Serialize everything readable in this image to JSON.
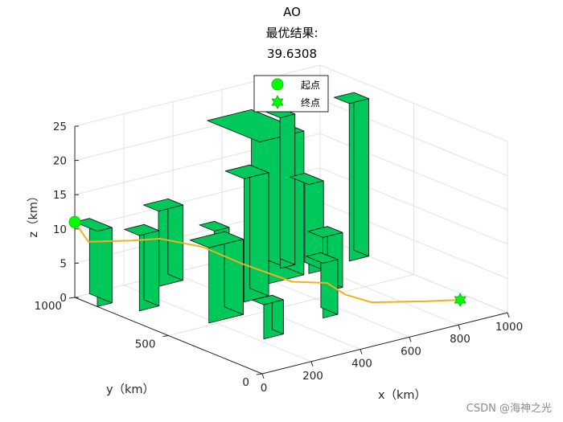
{
  "chart_data": {
    "type": "3d-bar-obstacles",
    "title_lines": [
      "AO",
      "最优结果:",
      "39.6308"
    ],
    "xlabel": "x（km）",
    "ylabel": "y（km）",
    "zlabel": "z（km）",
    "xlim": [
      0,
      1000
    ],
    "ylim": [
      0,
      1000
    ],
    "zlim": [
      0,
      25
    ],
    "xticks": [
      "0",
      "200",
      "400",
      "600",
      "800",
      "1000"
    ],
    "yticks": [
      "0",
      "500",
      "1000"
    ],
    "zticks": [
      "0",
      "5",
      "10",
      "15",
      "20",
      "25"
    ],
    "grid": true,
    "legend": {
      "location": "top-center",
      "entries": [
        {
          "label": "起点",
          "marker": "circle",
          "color": "#00FF00"
        },
        {
          "label": "终点",
          "marker": "hexagram",
          "color": "#00FF00"
        }
      ]
    },
    "colors": {
      "obstacle": "#00C85A",
      "path": "#EDB120",
      "marker": "#00FF00"
    },
    "obstacles": [
      {
        "x": [
          0,
          60
        ],
        "y": [
          880,
          1000
        ],
        "h": 11
      },
      {
        "x": [
          80,
          160
        ],
        "y": [
          760,
          840
        ],
        "h": 11
      },
      {
        "x": [
          180,
          320
        ],
        "y": [
          520,
          620
        ],
        "h": 11
      },
      {
        "x": [
          280,
          380
        ],
        "y": [
          920,
          1000
        ],
        "h": 11
      },
      {
        "x": [
          340,
          400
        ],
        "y": [
          700,
          780
        ],
        "h": 10
      },
      {
        "x": [
          400,
          500
        ],
        "y": [
          620,
          720
        ],
        "h": 18
      },
      {
        "x": [
          220,
          300
        ],
        "y": [
          280,
          340
        ],
        "h": 5
      },
      {
        "x": [
          540,
          720
        ],
        "y": [
          720,
          1000
        ],
        "h": 21
      },
      {
        "x": [
          500,
          560
        ],
        "y": [
          330,
          420
        ],
        "h": 8
      },
      {
        "x": [
          700,
          760
        ],
        "y": [
          820,
          900
        ],
        "h": 22
      },
      {
        "x": [
          660,
          740
        ],
        "y": [
          540,
          620
        ],
        "h": 8
      },
      {
        "x": [
          740,
          800
        ],
        "y": [
          720,
          820
        ],
        "h": 13
      },
      {
        "x": [
          920,
          1000
        ],
        "y": [
          740,
          820
        ],
        "h": 23
      }
    ],
    "path": [
      {
        "x": 0,
        "y": 1000,
        "z": 11
      },
      {
        "x": 40,
        "y": 980,
        "z": 8
      },
      {
        "x": 160,
        "y": 900,
        "z": 8
      },
      {
        "x": 240,
        "y": 860,
        "z": 8
      },
      {
        "x": 340,
        "y": 760,
        "z": 7
      },
      {
        "x": 420,
        "y": 660,
        "z": 5
      },
      {
        "x": 520,
        "y": 520,
        "z": 3
      },
      {
        "x": 600,
        "y": 440,
        "z": 3
      },
      {
        "x": 660,
        "y": 420,
        "z": 1
      },
      {
        "x": 720,
        "y": 360,
        "z": 0
      },
      {
        "x": 860,
        "y": 260,
        "z": 0
      },
      {
        "x": 960,
        "y": 200,
        "z": 0
      }
    ],
    "start": {
      "x": 0,
      "y": 1000,
      "z": 11
    },
    "end": {
      "x": 960,
      "y": 200,
      "z": 0
    }
  },
  "watermark": "CSDN @海神之光"
}
